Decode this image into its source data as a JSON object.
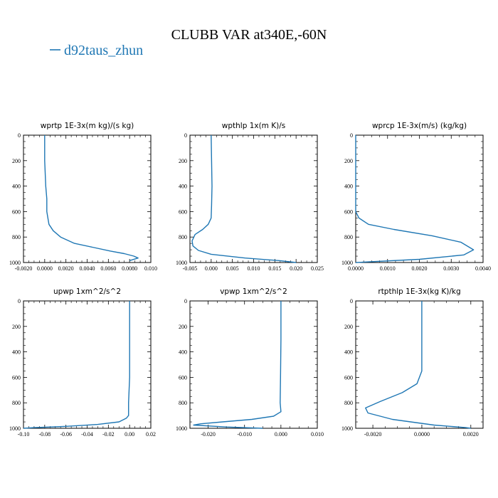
{
  "figure": {
    "title": "CLUBB VAR at340E,-60N",
    "legend": [
      {
        "label": "d92taus_zhun",
        "color": "#1f77b4"
      }
    ]
  },
  "chart_data": [
    {
      "type": "line",
      "title": "wprtp  1E-3x(m kg)/(s kg)",
      "xlim": [
        -0.002,
        0.01
      ],
      "ylim": [
        1000,
        0
      ],
      "xticks": [
        "-0.0020",
        "0.0000",
        "0.0020",
        "0.0040",
        "0.0060",
        "0.0080",
        "0.010"
      ],
      "yticks": [
        "0",
        "200",
        "400",
        "600",
        "800",
        "1000"
      ],
      "series": [
        {
          "color": "#1f77b4",
          "x": [
            0.0,
            0.0,
            0.0001,
            0.0002,
            0.0002,
            0.0003,
            0.0004,
            0.0008,
            0.0015,
            0.0028,
            0.0045,
            0.0062,
            0.0075,
            0.0084,
            0.0088,
            0.008
          ],
          "y": [
            0,
            200,
            400,
            500,
            600,
            650,
            700,
            750,
            800,
            850,
            880,
            910,
            930,
            950,
            965,
            985
          ]
        }
      ]
    },
    {
      "type": "line",
      "title": "wpthlp  1x(m K)/s",
      "xlim": [
        -0.005,
        0.025
      ],
      "ylim": [
        1000,
        0
      ],
      "xticks": [
        "-0.005",
        "0.000",
        "0.005",
        "0.010",
        "0.015",
        "0.020",
        "0.025"
      ],
      "yticks": [
        "0",
        "200",
        "400",
        "600",
        "800",
        "1000"
      ],
      "series": [
        {
          "color": "#1f77b4",
          "x": [
            0.0,
            0.0001,
            0.0002,
            0.0001,
            0.0,
            -0.0007,
            -0.002,
            -0.0038,
            -0.0045,
            -0.0043,
            -0.003,
            0.0,
            0.008,
            0.016,
            0.02
          ],
          "y": [
            0,
            200,
            400,
            550,
            650,
            700,
            740,
            780,
            830,
            870,
            905,
            935,
            965,
            985,
            1000
          ]
        }
      ]
    },
    {
      "type": "line",
      "title": "wprcp  1E-3x(m/s) (kg/kg)",
      "xlim": [
        0.0,
        0.004
      ],
      "ylim": [
        1000,
        0
      ],
      "xticks": [
        "0.0000",
        "0.0010",
        "0.0020",
        "0.0030",
        "0.0040"
      ],
      "yticks": [
        "0",
        "200",
        "400",
        "600",
        "800",
        "1000"
      ],
      "series": [
        {
          "color": "#1f77b4",
          "x": [
            0.0,
            0.0,
            0.0,
            0.0,
            0.0001,
            0.0004,
            0.0012,
            0.0024,
            0.0033,
            0.0037,
            0.0034,
            0.002,
            0.0
          ],
          "y": [
            0,
            200,
            400,
            600,
            650,
            700,
            740,
            790,
            840,
            900,
            940,
            975,
            1000
          ]
        }
      ]
    },
    {
      "type": "line",
      "title": "upwp  1xm^2/s^2",
      "xlim": [
        -0.1,
        0.02
      ],
      "ylim": [
        1000,
        0
      ],
      "xticks": [
        "-0.10",
        "-0.08",
        "-0.06",
        "-0.04",
        "-0.02",
        "0.00",
        "0.02"
      ],
      "yticks": [
        "0",
        "200",
        "400",
        "600",
        "800",
        "1000"
      ],
      "series": [
        {
          "color": "#1f77b4",
          "x": [
            0.0,
            0.0,
            0.0,
            -0.001,
            -0.001,
            -0.003,
            -0.01,
            -0.03,
            -0.06,
            -0.09,
            -0.1
          ],
          "y": [
            0,
            300,
            600,
            800,
            900,
            920,
            950,
            970,
            985,
            995,
            1000
          ]
        }
      ]
    },
    {
      "type": "line",
      "title": "vpwp  1xm^2/s^2",
      "xlim": [
        -0.025,
        0.01
      ],
      "ylim": [
        1000,
        0
      ],
      "xticks": [
        "-0.020",
        "-0.010",
        "0.000",
        "0.010"
      ],
      "yticks": [
        "0",
        "200",
        "400",
        "600",
        "800",
        "1000"
      ],
      "series": [
        {
          "color": "#1f77b4",
          "x": [
            0.0,
            0.0,
            -0.0001,
            -0.0002,
            0.0,
            -0.002,
            -0.008,
            -0.016,
            -0.022,
            -0.024,
            -0.015,
            -0.005
          ],
          "y": [
            0,
            300,
            600,
            800,
            870,
            905,
            930,
            950,
            965,
            975,
            990,
            1000
          ]
        }
      ]
    },
    {
      "type": "line",
      "title": "rtpthlp  1E-3x(kg K)/kg",
      "xlim": [
        -0.0027,
        0.0025
      ],
      "ylim": [
        1000,
        0
      ],
      "xticks": [
        "-0.0020",
        "0.0000",
        "0.0020"
      ],
      "yticks": [
        "0",
        "200",
        "400",
        "600",
        "800",
        "1000"
      ],
      "series": [
        {
          "color": "#1f77b4",
          "x": [
            0.0,
            0.0,
            0.0,
            -0.0002,
            -0.0008,
            -0.0017,
            -0.0023,
            -0.0022,
            -0.0012,
            0.0005,
            0.0018,
            0.002
          ],
          "y": [
            0,
            300,
            550,
            650,
            720,
            790,
            840,
            880,
            930,
            975,
            995,
            1000
          ]
        }
      ]
    }
  ]
}
